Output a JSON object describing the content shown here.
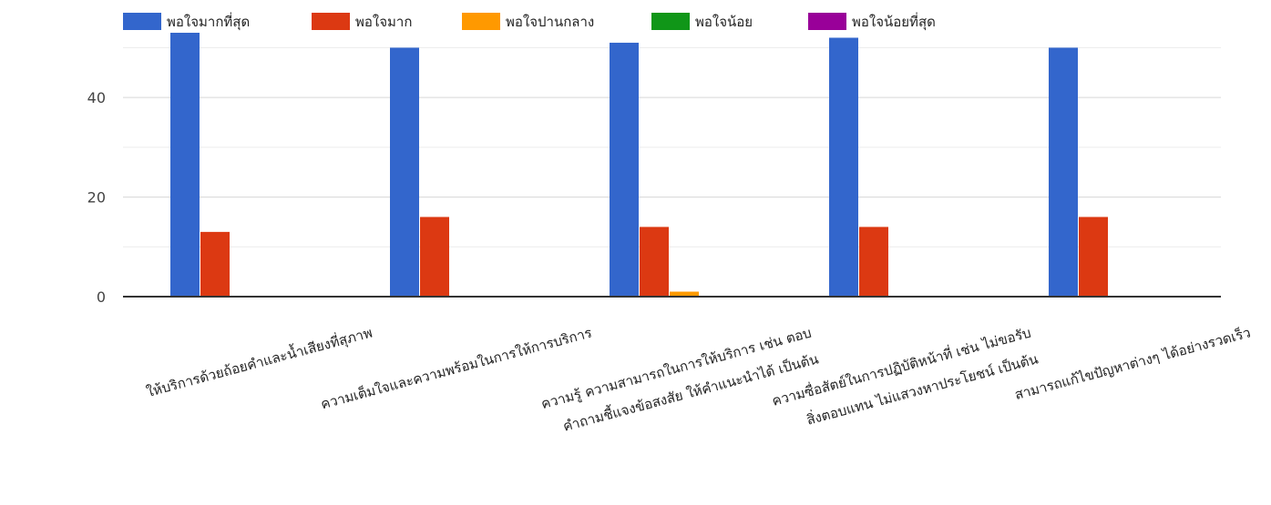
{
  "chart_data": {
    "type": "bar",
    "title": "",
    "xlabel": "",
    "ylabel": "",
    "ylim": [
      0,
      53
    ],
    "yticks": [
      0,
      20,
      40
    ],
    "grid": true,
    "legend_position": "top",
    "categories": [
      [
        "ให้บริการด้วยถ้อยคำและน้ำเสียงที่สุภาพ"
      ],
      [
        "ความเต็มใจและความพร้อมในการให้การบริการ"
      ],
      [
        "ความรู้ ความสามารถในการให้บริการ เช่น ตอบ",
        "คำถามชี้แจงข้อสงสัย ให้คำแนะนำได้ เป็นต้น"
      ],
      [
        "ความซื่อสัตย์ในการปฏิบัติหน้าที่ เช่น ไม่ขอรับ",
        "สิ่งตอบแทน ไม่แสวงหาประโยชน์ เป็นต้น"
      ],
      [
        "สามารถแก้ไขปัญหาต่างๆ ได้อย่างรวดเร็ว"
      ]
    ],
    "series": [
      {
        "name": "พอใจมากที่สุด",
        "color": "#3366cc",
        "values": [
          53,
          50,
          51,
          52,
          50
        ]
      },
      {
        "name": "พอใจมาก",
        "color": "#dc3912",
        "values": [
          13,
          16,
          14,
          14,
          16
        ]
      },
      {
        "name": "พอใจปานกลาง",
        "color": "#ff9900",
        "values": [
          0,
          0,
          1,
          0,
          0
        ]
      },
      {
        "name": "พอใจน้อย",
        "color": "#109618",
        "values": [
          0,
          0,
          0,
          0,
          0
        ]
      },
      {
        "name": "พอใจน้อยที่สุด",
        "color": "#990099",
        "values": [
          0,
          0,
          0,
          0,
          0
        ]
      }
    ]
  }
}
